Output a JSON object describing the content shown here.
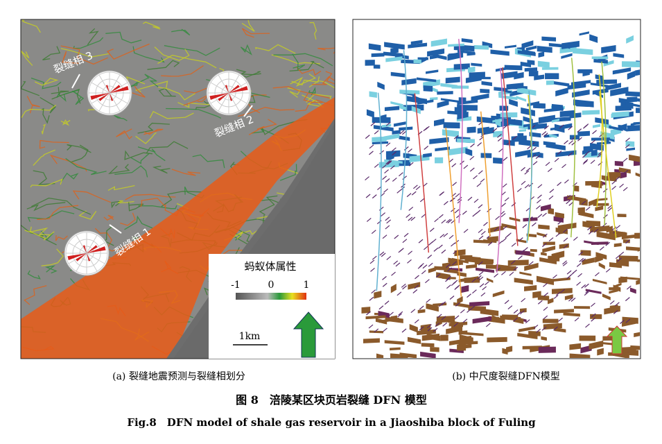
{
  "panel_a": {
    "facies_labels": [
      "裂缝相 3",
      "裂缝相 2",
      "裂缝相 1"
    ],
    "legend": {
      "title": "蚂蚁体属性",
      "ticks": [
        -1,
        0,
        1
      ]
    },
    "scale_bar": "1km",
    "caption": "(a) 裂缝地震预测与裂缝相划分"
  },
  "panel_b": {
    "caption": "(b) 中尺度裂缝DFN模型"
  },
  "figure": {
    "title_cn": "图 8　涪陵某区块页岩裂缝 DFN 模型",
    "title_en": "Fig.8　DFN model of shale gas reservoir in a Jiaoshiba block of Fuling"
  }
}
